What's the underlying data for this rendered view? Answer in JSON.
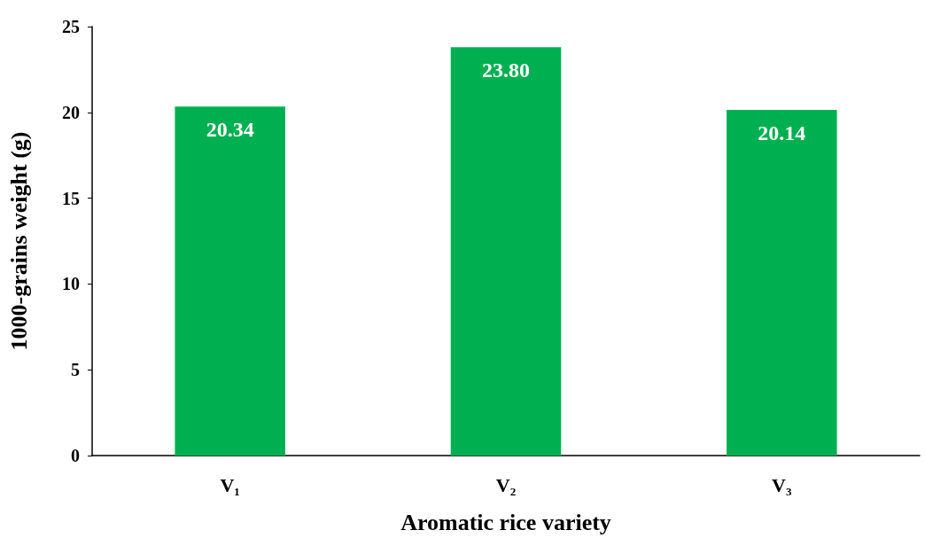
{
  "chart_data": {
    "type": "bar",
    "xlabel": "Aromatic rice variety",
    "ylabel": "1000-grains weight (g)",
    "categories": [
      "V₁",
      "V₂",
      "V₃"
    ],
    "values": [
      20.34,
      23.8,
      20.14
    ],
    "value_labels": [
      "20.34",
      "23.80",
      "20.14"
    ],
    "color": "#00b050",
    "ylim": [
      0,
      25
    ],
    "yticks": [
      0,
      5,
      10,
      15,
      20,
      25
    ]
  }
}
